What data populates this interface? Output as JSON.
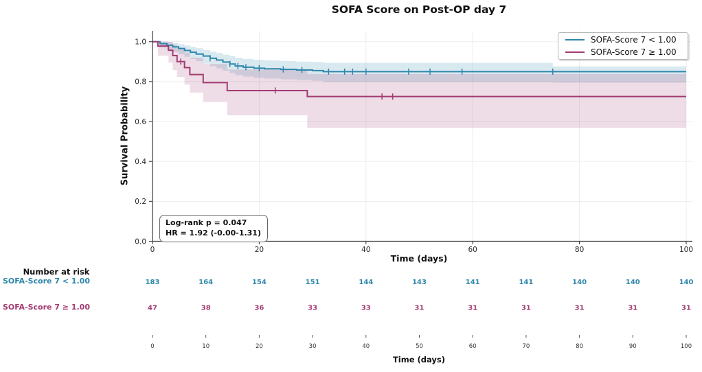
{
  "chart_data": {
    "type": "line",
    "subtype": "kaplan-meier-step",
    "title": "SOFA Score on Post-OP day 7",
    "xlabel": "Time (days)",
    "ylabel": "Survival Probability",
    "xlim": [
      0,
      100
    ],
    "ylim": [
      0.0,
      1.05
    ],
    "xticks": [
      0,
      20,
      40,
      60,
      80,
      100
    ],
    "yticks": [
      "0.0",
      "0.2",
      "0.4",
      "0.6",
      "0.8",
      "1.0"
    ],
    "grid": true,
    "legend_position": "upper right",
    "annotation": {
      "lines": [
        "Log-rank p = 0.047",
        "HR = 1.92 (-0.00-1.31)"
      ]
    },
    "colors": {
      "group_low": "#2E86AB",
      "group_high": "#A23B72",
      "grid": "#ededed",
      "spine": "#3a3a3a"
    },
    "series": [
      {
        "name": "SOFA-Score 7 < 1.00",
        "color": "#2E86AB",
        "steps": [
          [
            0,
            1.0
          ],
          [
            1.4,
            0.99
          ],
          [
            2.7,
            0.982
          ],
          [
            3.8,
            0.974
          ],
          [
            4.9,
            0.966
          ],
          [
            6,
            0.956
          ],
          [
            7.1,
            0.947
          ],
          [
            8.2,
            0.938
          ],
          [
            9.5,
            0.928
          ],
          [
            10.8,
            0.917
          ],
          [
            12,
            0.908
          ],
          [
            13.2,
            0.898
          ],
          [
            14.5,
            0.888
          ],
          [
            15.5,
            0.878
          ],
          [
            17,
            0.872
          ],
          [
            19,
            0.867
          ],
          [
            21,
            0.864
          ],
          [
            24,
            0.861
          ],
          [
            27,
            0.858
          ],
          [
            30,
            0.855
          ],
          [
            32,
            0.85
          ],
          [
            100,
            0.85
          ]
        ],
        "ci_upper": [
          [
            0,
            1.0
          ],
          [
            1.4,
            1.0
          ],
          [
            2.7,
            0.998
          ],
          [
            3.8,
            0.993
          ],
          [
            4.9,
            0.988
          ],
          [
            6,
            0.981
          ],
          [
            7.1,
            0.974
          ],
          [
            8.2,
            0.967
          ],
          [
            9.5,
            0.959
          ],
          [
            10.8,
            0.95
          ],
          [
            12,
            0.943
          ],
          [
            13.2,
            0.935
          ],
          [
            14.5,
            0.927
          ],
          [
            15.5,
            0.919
          ],
          [
            17,
            0.913
          ],
          [
            19,
            0.909
          ],
          [
            21,
            0.906
          ],
          [
            24,
            0.903
          ],
          [
            27,
            0.9
          ],
          [
            30,
            0.898
          ],
          [
            32,
            0.894
          ],
          [
            75,
            0.876
          ],
          [
            100,
            0.876
          ]
        ],
        "ci_lower": [
          [
            0,
            1.0
          ],
          [
            1.4,
            0.972
          ],
          [
            2.7,
            0.958
          ],
          [
            3.8,
            0.948
          ],
          [
            4.9,
            0.937
          ],
          [
            6,
            0.924
          ],
          [
            7.1,
            0.913
          ],
          [
            8.2,
            0.902
          ],
          [
            9.5,
            0.89
          ],
          [
            10.8,
            0.877
          ],
          [
            12,
            0.866
          ],
          [
            13.2,
            0.855
          ],
          [
            14.5,
            0.843
          ],
          [
            15.5,
            0.832
          ],
          [
            17,
            0.825
          ],
          [
            19,
            0.819
          ],
          [
            21,
            0.815
          ],
          [
            24,
            0.811
          ],
          [
            27,
            0.808
          ],
          [
            30,
            0.804
          ],
          [
            32,
            0.798
          ],
          [
            75,
            0.795
          ],
          [
            100,
            0.795
          ]
        ],
        "censor_times": [
          10.8,
          14.5,
          16,
          17.5,
          20,
          24.5,
          28,
          33,
          36,
          37.5,
          40,
          48,
          52,
          58,
          75
        ]
      },
      {
        "name": "SOFA-Score 7 ≥ 1.00",
        "color": "#A23B72",
        "steps": [
          [
            0,
            1.0
          ],
          [
            1,
            0.978
          ],
          [
            3,
            0.957
          ],
          [
            3.8,
            0.93
          ],
          [
            4.6,
            0.9
          ],
          [
            6,
            0.87
          ],
          [
            7,
            0.835
          ],
          [
            9.5,
            0.795
          ],
          [
            14,
            0.755
          ],
          [
            29,
            0.725
          ],
          [
            100,
            0.725
          ]
        ],
        "ci_upper": [
          [
            0,
            1.0
          ],
          [
            1,
            1.0
          ],
          [
            3,
            0.998
          ],
          [
            3.8,
            0.985
          ],
          [
            4.6,
            0.968
          ],
          [
            6,
            0.945
          ],
          [
            7,
            0.92
          ],
          [
            9.5,
            0.888
          ],
          [
            14,
            0.86
          ],
          [
            29,
            0.838
          ],
          [
            100,
            0.838
          ]
        ],
        "ci_lower": [
          [
            0,
            1.0
          ],
          [
            1,
            0.93
          ],
          [
            3,
            0.895
          ],
          [
            3.8,
            0.858
          ],
          [
            4.6,
            0.823
          ],
          [
            6,
            0.785
          ],
          [
            7,
            0.745
          ],
          [
            9.5,
            0.697
          ],
          [
            14,
            0.631
          ],
          [
            29,
            0.568
          ],
          [
            100,
            0.568
          ]
        ],
        "censor_times": [
          5.3,
          23,
          43,
          45
        ]
      }
    ],
    "risk_table": {
      "header": "Number at risk",
      "xlabel": "Time (days)",
      "xticks": [
        0,
        10,
        20,
        30,
        40,
        50,
        60,
        70,
        80,
        90,
        100
      ],
      "rows": [
        {
          "label": "SOFA-Score 7 < 1.00",
          "color": "#2E86AB",
          "values": [
            183,
            164,
            154,
            151,
            144,
            143,
            141,
            141,
            140,
            140,
            140
          ]
        },
        {
          "label": "SOFA-Score 7 ≥ 1.00",
          "color": "#A23B72",
          "values": [
            47,
            38,
            36,
            33,
            33,
            31,
            31,
            31,
            31,
            31,
            31
          ]
        }
      ]
    }
  }
}
